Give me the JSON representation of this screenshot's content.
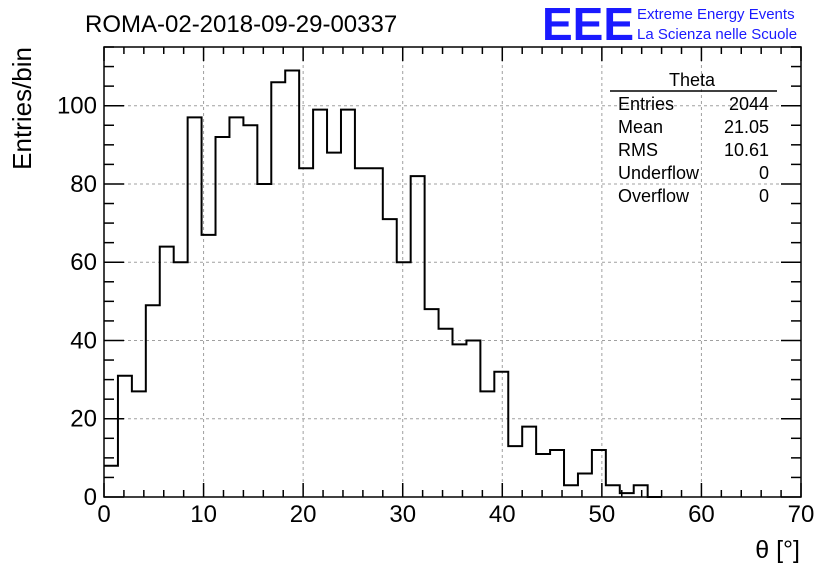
{
  "header": {
    "run_title": "ROMA-02-2018-09-29-00337"
  },
  "brand": {
    "logo_text": "EEE",
    "line1": "Extreme Energy Events",
    "line2": "La Scienza nelle Scuole",
    "color": "#1a1aff"
  },
  "stats": {
    "title": "Theta",
    "rows": [
      {
        "label": "Entries",
        "value": "2044"
      },
      {
        "label": "Mean",
        "value": "21.05"
      },
      {
        "label": "RMS",
        "value": "10.61"
      },
      {
        "label": "Underflow",
        "value": "0"
      },
      {
        "label": "Overflow",
        "value": "0"
      }
    ]
  },
  "chart_data": {
    "type": "histogram",
    "title": "ROMA-02-2018-09-29-00337",
    "xlabel": "θ [°]",
    "ylabel": "Entries/bin",
    "xlim": [
      0,
      70
    ],
    "ylim": [
      0,
      115
    ],
    "bin_width": 1.4,
    "xticks": [
      0,
      10,
      20,
      30,
      40,
      50,
      60,
      70
    ],
    "yticks": [
      0,
      20,
      40,
      60,
      80,
      100
    ],
    "grid": true,
    "line_color": "#000000",
    "bin_edges_start": 0,
    "values": [
      8,
      31,
      27,
      49,
      64,
      60,
      97,
      67,
      92,
      97,
      95,
      80,
      106,
      109,
      84,
      99,
      88,
      99,
      84,
      84,
      71,
      60,
      82,
      48,
      43,
      39,
      40,
      27,
      32,
      13,
      18,
      11,
      12,
      3,
      6,
      12,
      3,
      1,
      3,
      0
    ]
  }
}
